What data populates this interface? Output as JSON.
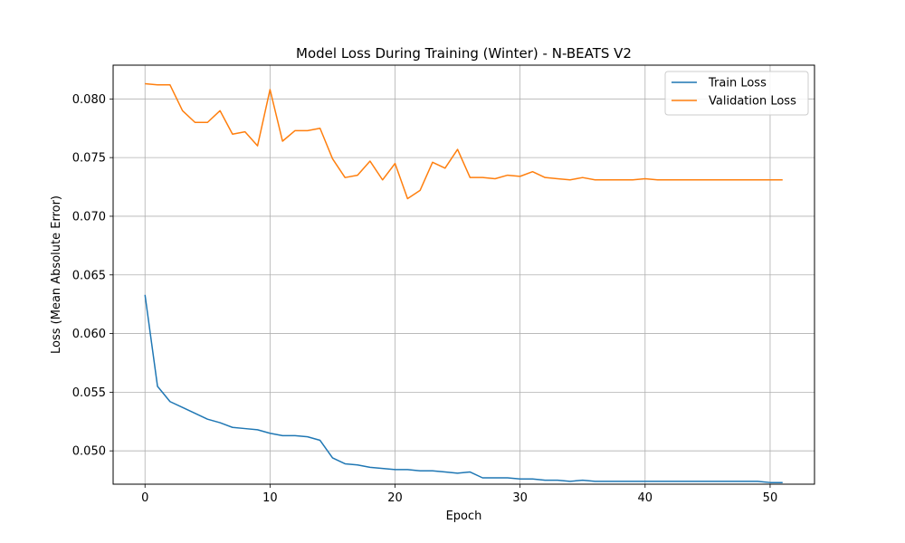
{
  "chart_data": {
    "type": "line",
    "title": "Model Loss During Training (Winter) - N-BEATS V2",
    "xlabel": "Epoch",
    "ylabel": "Loss (Mean Absolute Error)",
    "xlim": [
      -2.55,
      53.55
    ],
    "ylim": [
      0.04716,
      0.08288
    ],
    "xticks": [
      0,
      10,
      20,
      30,
      40,
      50
    ],
    "yticks": [
      0.05,
      0.055,
      0.06,
      0.065,
      0.07,
      0.075,
      0.08
    ],
    "ytick_labels": [
      "0.050",
      "0.055",
      "0.060",
      "0.065",
      "0.070",
      "0.075",
      "0.080"
    ],
    "grid": true,
    "legend_position": "top-right",
    "x": [
      0,
      1,
      2,
      3,
      4,
      5,
      6,
      7,
      8,
      9,
      10,
      11,
      12,
      13,
      14,
      15,
      16,
      17,
      18,
      19,
      20,
      21,
      22,
      23,
      24,
      25,
      26,
      27,
      28,
      29,
      30,
      31,
      32,
      33,
      34,
      35,
      36,
      37,
      38,
      39,
      40,
      41,
      42,
      43,
      44,
      45,
      46,
      47,
      48,
      49,
      50,
      51
    ],
    "series": [
      {
        "name": "Train Loss",
        "color": "#1f77b4",
        "values": [
          0.0633,
          0.0555,
          0.0542,
          0.0537,
          0.0532,
          0.0527,
          0.0524,
          0.052,
          0.0519,
          0.0518,
          0.0515,
          0.0513,
          0.0513,
          0.0512,
          0.0509,
          0.0494,
          0.0489,
          0.0488,
          0.0486,
          0.0485,
          0.0484,
          0.0484,
          0.0483,
          0.0483,
          0.0482,
          0.0481,
          0.0482,
          0.0477,
          0.0477,
          0.0477,
          0.0476,
          0.0476,
          0.0475,
          0.0475,
          0.0474,
          0.0475,
          0.0474,
          0.0474,
          0.0474,
          0.0474,
          0.0474,
          0.0474,
          0.0474,
          0.0474,
          0.0474,
          0.0474,
          0.0474,
          0.0474,
          0.0474,
          0.0474,
          0.0473,
          0.0473
        ]
      },
      {
        "name": "Validation Loss",
        "color": "#ff7f0e",
        "values": [
          0.0813,
          0.0812,
          0.0812,
          0.079,
          0.078,
          0.078,
          0.079,
          0.077,
          0.0772,
          0.076,
          0.0808,
          0.0764,
          0.0773,
          0.0773,
          0.0775,
          0.0749,
          0.0733,
          0.0735,
          0.0747,
          0.0731,
          0.0745,
          0.0715,
          0.0722,
          0.0746,
          0.0741,
          0.0757,
          0.0733,
          0.0733,
          0.0732,
          0.0735,
          0.0734,
          0.0738,
          0.0733,
          0.0732,
          0.0731,
          0.0733,
          0.0731,
          0.0731,
          0.0731,
          0.0731,
          0.0732,
          0.0731,
          0.0731,
          0.0731,
          0.0731,
          0.0731,
          0.0731,
          0.0731,
          0.0731,
          0.0731,
          0.0731,
          0.0731
        ]
      }
    ]
  }
}
